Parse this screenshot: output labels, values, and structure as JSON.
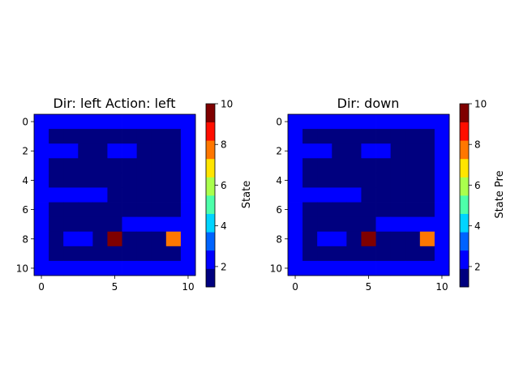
{
  "chart_data": [
    {
      "type": "heatmap",
      "title": "Dir: left  Action: left",
      "xlabel": "",
      "ylabel": "",
      "colorbar_label": "State",
      "x_ticks": [
        0,
        5,
        10
      ],
      "y_ticks": [
        0,
        2,
        4,
        6,
        8,
        10
      ],
      "x_range": [
        -0.5,
        10.5
      ],
      "y_range": [
        10.5,
        -0.5
      ],
      "colorbar_ticks": [
        2,
        4,
        6,
        8,
        10
      ],
      "colorbar_range": [
        1,
        10
      ],
      "grid": false,
      "values": [
        [
          2,
          2,
          2,
          2,
          2,
          2,
          2,
          2,
          2,
          2,
          2
        ],
        [
          2,
          1,
          1,
          1,
          1,
          1,
          1,
          1,
          1,
          1,
          2
        ],
        [
          2,
          2,
          2,
          1,
          1,
          2,
          2,
          1,
          1,
          1,
          2
        ],
        [
          2,
          1,
          1,
          1,
          1,
          1,
          1,
          1,
          1,
          1,
          2
        ],
        [
          2,
          1,
          1,
          1,
          1,
          1,
          1,
          1,
          1,
          1,
          2
        ],
        [
          2,
          2,
          2,
          2,
          2,
          1,
          1,
          1,
          1,
          1,
          2
        ],
        [
          2,
          1,
          1,
          1,
          1,
          1,
          1,
          1,
          1,
          1,
          2
        ],
        [
          2,
          1,
          1,
          1,
          1,
          1,
          2,
          2,
          2,
          2,
          2
        ],
        [
          2,
          1,
          2,
          2,
          1,
          10,
          1,
          1,
          1,
          8,
          2
        ],
        [
          2,
          1,
          1,
          1,
          1,
          1,
          1,
          1,
          1,
          1,
          2
        ],
        [
          2,
          2,
          2,
          2,
          2,
          2,
          2,
          2,
          2,
          2,
          2
        ]
      ]
    },
    {
      "type": "heatmap",
      "title": "Dir: down",
      "xlabel": "",
      "ylabel": "",
      "colorbar_label": "State Pre",
      "x_ticks": [
        0,
        5,
        10
      ],
      "y_ticks": [
        0,
        2,
        4,
        6,
        8,
        10
      ],
      "x_range": [
        -0.5,
        10.5
      ],
      "y_range": [
        10.5,
        -0.5
      ],
      "colorbar_ticks": [
        2,
        4,
        6,
        8,
        10
      ],
      "colorbar_range": [
        1,
        10
      ],
      "grid": false,
      "values": [
        [
          2,
          2,
          2,
          2,
          2,
          2,
          2,
          2,
          2,
          2,
          2
        ],
        [
          2,
          1,
          1,
          1,
          1,
          1,
          1,
          1,
          1,
          1,
          2
        ],
        [
          2,
          2,
          2,
          1,
          1,
          2,
          2,
          1,
          1,
          1,
          2
        ],
        [
          2,
          1,
          1,
          1,
          1,
          1,
          1,
          1,
          1,
          1,
          2
        ],
        [
          2,
          1,
          1,
          1,
          1,
          1,
          1,
          1,
          1,
          1,
          2
        ],
        [
          2,
          2,
          2,
          2,
          2,
          1,
          1,
          1,
          1,
          1,
          2
        ],
        [
          2,
          1,
          1,
          1,
          1,
          1,
          1,
          1,
          1,
          1,
          2
        ],
        [
          2,
          1,
          1,
          1,
          1,
          1,
          2,
          2,
          2,
          2,
          2
        ],
        [
          2,
          1,
          2,
          2,
          1,
          10,
          1,
          1,
          1,
          8,
          2
        ],
        [
          2,
          1,
          1,
          1,
          1,
          1,
          1,
          1,
          1,
          1,
          2
        ],
        [
          2,
          2,
          2,
          2,
          2,
          2,
          2,
          2,
          2,
          2,
          2
        ]
      ]
    }
  ],
  "colormap": {
    "name": "jet",
    "levels": [
      "#00007f",
      "#0000ff",
      "#0063ff",
      "#00d4ff",
      "#4dffaa",
      "#aaff4d",
      "#ffe500",
      "#ff7700",
      "#ff0e00",
      "#7f0000"
    ]
  }
}
